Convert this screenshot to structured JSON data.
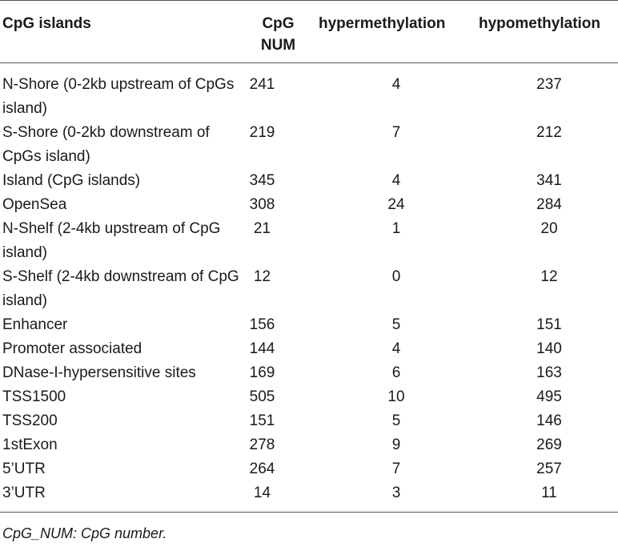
{
  "table": {
    "headers": [
      "CpG islands",
      "CpG NUM",
      "hypermethylation",
      "hypomethylation"
    ],
    "rows": [
      [
        "N-Shore (0-2kb upstream of CpGs island)",
        "241",
        "4",
        "237"
      ],
      [
        "S-Shore (0-2kb downstream of CpGs island)",
        "219",
        "7",
        "212"
      ],
      [
        "Island (CpG islands)",
        "345",
        "4",
        "341"
      ],
      [
        "OpenSea",
        "308",
        "24",
        "284"
      ],
      [
        "N-Shelf (2-4kb upstream of CpG island)",
        "21",
        "1",
        "20"
      ],
      [
        "S-Shelf (2-4kb downstream of CpG island)",
        "12",
        "0",
        "12"
      ],
      [
        "Enhancer",
        "156",
        "5",
        "151"
      ],
      [
        "Promoter associated",
        "144",
        "4",
        "140"
      ],
      [
        "DNase-I-hypersensitive sites",
        "169",
        "6",
        "163"
      ],
      [
        "TSS1500",
        "505",
        "10",
        "495"
      ],
      [
        "TSS200",
        "151",
        "5",
        "146"
      ],
      [
        "1stExon",
        "278",
        "9",
        "269"
      ],
      [
        "5’UTR",
        "264",
        "7",
        "257"
      ],
      [
        "3’UTR",
        "14",
        "3",
        "11"
      ]
    ]
  },
  "footnote": "CpG_NUM: CpG number."
}
